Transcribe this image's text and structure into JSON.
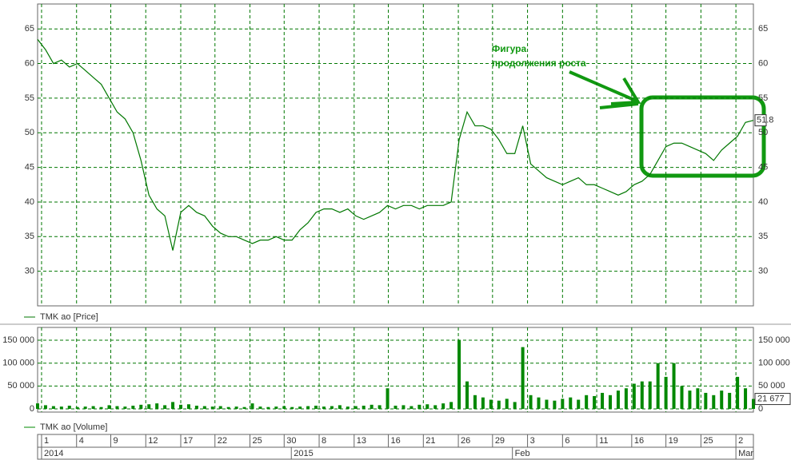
{
  "chart_data": [
    {
      "type": "line",
      "series": [
        {
          "name": "TMK ao [Price]",
          "color": "#007700",
          "values": [
            63.5,
            62,
            60,
            60.5,
            59.5,
            60,
            59,
            58,
            57,
            55,
            53,
            52,
            50,
            46,
            41,
            39,
            38,
            33,
            38.5,
            39.5,
            38.5,
            38,
            36.5,
            35.5,
            35,
            35,
            34.5,
            34,
            34.5,
            34.5,
            35,
            34.5,
            34.5,
            36,
            37,
            38.5,
            39,
            39,
            38.5,
            39,
            38,
            37.5,
            38,
            38.5,
            39.5,
            39,
            39.5,
            39.5,
            39,
            39.5,
            39.5,
            39.5,
            40,
            49,
            53,
            51,
            51,
            50.5,
            49,
            47,
            47,
            51,
            45.5,
            44.5,
            43.5,
            43,
            42.5,
            43,
            43.5,
            42.5,
            42.5,
            42,
            41.5,
            41,
            41.5,
            42.5,
            43,
            44,
            46,
            48,
            48.5,
            48.5,
            48,
            47.5,
            47,
            46,
            47.5,
            48.5,
            49.5,
            51.5,
            51.8
          ]
        }
      ],
      "xlim": [
        0,
        90
      ],
      "ylim": [
        25,
        68.6
      ],
      "yticks": [
        30,
        35,
        40,
        45,
        50,
        55,
        60,
        65
      ],
      "grid": true,
      "annotation": [
        "Фигура",
        "продолжения роста"
      ]
    },
    {
      "type": "bar",
      "series": [
        {
          "name": "TMK ao [Volume]",
          "color": "#008800",
          "values": [
            12000,
            8000,
            6000,
            5000,
            7000,
            4000,
            5000,
            6000,
            4000,
            8000,
            6000,
            5000,
            7000,
            9000,
            10000,
            12000,
            8000,
            15000,
            9000,
            10000,
            7000,
            6000,
            5000,
            6000,
            4000,
            5000,
            4000,
            12000,
            5000,
            4000,
            5000,
            6000,
            4000,
            5000,
            6000,
            7000,
            5000,
            6000,
            8000,
            5000,
            6000,
            7000,
            9000,
            8000,
            45000,
            7000,
            8000,
            6000,
            9000,
            10000,
            8000,
            12000,
            15000,
            150000,
            60000,
            30000,
            25000,
            20000,
            18000,
            22000,
            15000,
            135000,
            30000,
            25000,
            20000,
            18000,
            22000,
            25000,
            20000,
            30000,
            28000,
            35000,
            30000,
            40000,
            45000,
            55000,
            60000,
            60000,
            100000,
            70000,
            100000,
            50000,
            40000,
            45000,
            35000,
            30000,
            40000,
            35000,
            70000,
            45000,
            21677
          ],
          "last": {
            "value": 21677,
            "label": "21 677"
          }
        }
      ],
      "xlim": [
        0,
        90
      ],
      "ylim": [
        -7000,
        178000
      ],
      "yticks": [
        0,
        {
          "value": 50000,
          "label": "50 000"
        },
        {
          "value": 100000,
          "label": "100 000"
        },
        {
          "value": 150000,
          "label": "150 000"
        }
      ],
      "grid": true,
      "xticks": [
        {
          "value": 0.5,
          "label": "1"
        },
        {
          "value": 4.9,
          "label": "4"
        },
        {
          "value": 9.2,
          "label": "9"
        },
        {
          "value": 13.6,
          "label": "12"
        },
        {
          "value": 18,
          "label": "17"
        },
        {
          "value": 22.3,
          "label": "22"
        },
        {
          "value": 26.7,
          "label": "25"
        },
        {
          "value": 31,
          "label": "30"
        },
        {
          "value": 35.4,
          "label": "8"
        },
        {
          "value": 39.8,
          "label": "13"
        },
        {
          "value": 44.1,
          "label": "16"
        },
        {
          "value": 48.5,
          "label": "21"
        },
        {
          "value": 52.9,
          "label": "26"
        },
        {
          "value": 57.2,
          "label": "29"
        },
        {
          "value": 61.6,
          "label": "3"
        },
        {
          "value": 66,
          "label": "6"
        },
        {
          "value": 70.3,
          "label": "11"
        },
        {
          "value": 74.7,
          "label": "16"
        },
        {
          "value": 79,
          "label": "19"
        },
        {
          "value": 83.4,
          "label": "25"
        },
        {
          "value": 87.8,
          "label": "2"
        }
      ],
      "xticks_major": [
        {
          "value": 0.5,
          "label": "2014"
        },
        {
          "value": 31.9,
          "label": "2015"
        },
        {
          "value": 59.7,
          "label": "Feb"
        },
        {
          "value": 87.8,
          "label": "Mar"
        }
      ]
    }
  ]
}
